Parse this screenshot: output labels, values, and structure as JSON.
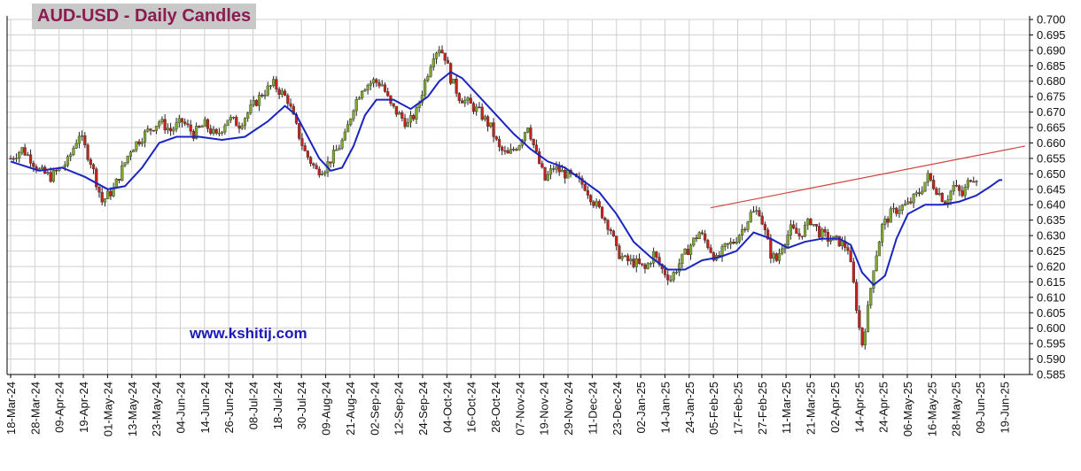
{
  "title": "AUD-USD - Daily Candles",
  "website": "www.kshitij.com",
  "colors": {
    "up": "#7ea82e",
    "down": "#c4221c",
    "wick": "#222222",
    "ma": "#1a24c0",
    "trendline": "#d0443c",
    "grid": "#cfcfcf",
    "title_bg": "#c8c8c8",
    "title_text": "#8b1c52",
    "website_text": "#1a1ab8"
  },
  "chart_data": {
    "type": "candlestick",
    "ylim": [
      0.585,
      0.7
    ],
    "y_ticks": [
      "0.585",
      "0.590",
      "0.595",
      "0.600",
      "0.605",
      "0.610",
      "0.615",
      "0.620",
      "0.625",
      "0.630",
      "0.635",
      "0.640",
      "0.645",
      "0.650",
      "0.655",
      "0.660",
      "0.665",
      "0.670",
      "0.675",
      "0.680",
      "0.685",
      "0.690",
      "0.695",
      "0.700"
    ],
    "x_ticks": [
      "18-Mar-24",
      "28-Mar-24",
      "09-Apr-24",
      "19-Apr-24",
      "01-May-24",
      "13-May-24",
      "23-May-24",
      "04-Jun-24",
      "14-Jun-24",
      "26-Jun-24",
      "08-Jul-24",
      "18-Jul-24",
      "30-Jul-24",
      "09-Aug-24",
      "21-Aug-24",
      "02-Sep-24",
      "12-Sep-24",
      "24-Sep-24",
      "04-Oct-24",
      "16-Oct-24",
      "28-Oct-24",
      "07-Nov-24",
      "19-Nov-24",
      "29-Nov-24",
      "11-Dec-24",
      "23-Dec-24",
      "02-Jan-25",
      "14-Jan-25",
      "24-Jan-25",
      "05-Feb-25",
      "17-Feb-25",
      "27-Feb-25",
      "11-Mar-25",
      "21-Mar-25",
      "02-Apr-25",
      "14-Apr-25",
      "24-Apr-25",
      "06-May-25",
      "16-May-25",
      "28-May-25",
      "09-Jun-25",
      "19-Jun-25"
    ],
    "anchors": [
      [
        0,
        0.655
      ],
      [
        4,
        0.658
      ],
      [
        7,
        0.655
      ],
      [
        10,
        0.651
      ],
      [
        14,
        0.649
      ],
      [
        20,
        0.654
      ],
      [
        24,
        0.663
      ],
      [
        28,
        0.654
      ],
      [
        32,
        0.641
      ],
      [
        36,
        0.645
      ],
      [
        42,
        0.658
      ],
      [
        47,
        0.663
      ],
      [
        52,
        0.667
      ],
      [
        56,
        0.664
      ],
      [
        60,
        0.667
      ],
      [
        64,
        0.663
      ],
      [
        68,
        0.666
      ],
      [
        72,
        0.662
      ],
      [
        76,
        0.668
      ],
      [
        80,
        0.666
      ],
      [
        84,
        0.671
      ],
      [
        88,
        0.676
      ],
      [
        92,
        0.679
      ],
      [
        97,
        0.674
      ],
      [
        100,
        0.665
      ],
      [
        103,
        0.657
      ],
      [
        107,
        0.651
      ],
      [
        110,
        0.652
      ],
      [
        113,
        0.656
      ],
      [
        117,
        0.662
      ],
      [
        120,
        0.672
      ],
      [
        123,
        0.678
      ],
      [
        127,
        0.68
      ],
      [
        130,
        0.679
      ],
      [
        133,
        0.672
      ],
      [
        136,
        0.669
      ],
      [
        139,
        0.666
      ],
      [
        142,
        0.67
      ],
      [
        145,
        0.68
      ],
      [
        148,
        0.689
      ],
      [
        150,
        0.691
      ],
      [
        152,
        0.688
      ],
      [
        154,
        0.681
      ],
      [
        157,
        0.675
      ],
      [
        160,
        0.673
      ],
      [
        164,
        0.67
      ],
      [
        168,
        0.665
      ],
      [
        171,
        0.658
      ],
      [
        174,
        0.656
      ],
      [
        178,
        0.66
      ],
      [
        181,
        0.666
      ],
      [
        184,
        0.656
      ],
      [
        187,
        0.648
      ],
      [
        190,
        0.652
      ],
      [
        194,
        0.65
      ],
      [
        198,
        0.648
      ],
      [
        201,
        0.646
      ],
      [
        204,
        0.641
      ],
      [
        207,
        0.637
      ],
      [
        210,
        0.632
      ],
      [
        212,
        0.625
      ],
      [
        215,
        0.622
      ],
      [
        219,
        0.621
      ],
      [
        222,
        0.619
      ],
      [
        225,
        0.624
      ],
      [
        228,
        0.619
      ],
      [
        231,
        0.616
      ],
      [
        234,
        0.621
      ],
      [
        238,
        0.627
      ],
      [
        241,
        0.631
      ],
      [
        244,
        0.627
      ],
      [
        247,
        0.622
      ],
      [
        250,
        0.626
      ],
      [
        253,
        0.628
      ],
      [
        256,
        0.632
      ],
      [
        259,
        0.637
      ],
      [
        262,
        0.638
      ],
      [
        264,
        0.631
      ],
      [
        266,
        0.624
      ],
      [
        268,
        0.622
      ],
      [
        270,
        0.627
      ],
      [
        273,
        0.632
      ],
      [
        276,
        0.63
      ],
      [
        280,
        0.635
      ],
      [
        283,
        0.631
      ],
      [
        286,
        0.629
      ],
      [
        290,
        0.628
      ],
      [
        293,
        0.626
      ],
      [
        295,
        0.614
      ],
      [
        297,
        0.6
      ],
      [
        298,
        0.595
      ],
      [
        300,
        0.606
      ],
      [
        302,
        0.62
      ],
      [
        305,
        0.633
      ],
      [
        308,
        0.637
      ],
      [
        311,
        0.639
      ],
      [
        314,
        0.64
      ],
      [
        318,
        0.644
      ],
      [
        321,
        0.649
      ],
      [
        324,
        0.645
      ],
      [
        327,
        0.641
      ],
      [
        330,
        0.646
      ],
      [
        333,
        0.643
      ],
      [
        336,
        0.649
      ],
      [
        338,
        0.649
      ]
    ],
    "moving_average": [
      [
        0,
        0.654
      ],
      [
        10,
        0.651
      ],
      [
        18,
        0.652
      ],
      [
        26,
        0.649
      ],
      [
        34,
        0.645
      ],
      [
        40,
        0.646
      ],
      [
        46,
        0.652
      ],
      [
        52,
        0.66
      ],
      [
        58,
        0.662
      ],
      [
        66,
        0.662
      ],
      [
        74,
        0.661
      ],
      [
        82,
        0.662
      ],
      [
        90,
        0.667
      ],
      [
        96,
        0.672
      ],
      [
        100,
        0.669
      ],
      [
        104,
        0.662
      ],
      [
        108,
        0.655
      ],
      [
        112,
        0.651
      ],
      [
        116,
        0.652
      ],
      [
        120,
        0.659
      ],
      [
        124,
        0.669
      ],
      [
        128,
        0.674
      ],
      [
        134,
        0.674
      ],
      [
        140,
        0.671
      ],
      [
        146,
        0.675
      ],
      [
        150,
        0.68
      ],
      [
        154,
        0.683
      ],
      [
        158,
        0.681
      ],
      [
        164,
        0.675
      ],
      [
        170,
        0.669
      ],
      [
        176,
        0.663
      ],
      [
        182,
        0.658
      ],
      [
        188,
        0.654
      ],
      [
        194,
        0.652
      ],
      [
        200,
        0.648
      ],
      [
        206,
        0.644
      ],
      [
        212,
        0.637
      ],
      [
        218,
        0.628
      ],
      [
        224,
        0.623
      ],
      [
        230,
        0.619
      ],
      [
        236,
        0.619
      ],
      [
        242,
        0.622
      ],
      [
        248,
        0.623
      ],
      [
        254,
        0.625
      ],
      [
        260,
        0.631
      ],
      [
        266,
        0.629
      ],
      [
        272,
        0.626
      ],
      [
        278,
        0.628
      ],
      [
        284,
        0.629
      ],
      [
        290,
        0.629
      ],
      [
        294,
        0.627
      ],
      [
        298,
        0.618
      ],
      [
        302,
        0.614
      ],
      [
        306,
        0.617
      ],
      [
        310,
        0.629
      ],
      [
        314,
        0.637
      ],
      [
        320,
        0.64
      ],
      [
        326,
        0.64
      ],
      [
        332,
        0.641
      ],
      [
        338,
        0.643
      ],
      [
        343,
        0.646
      ],
      [
        346,
        0.648
      ],
      [
        347,
        0.648
      ]
    ],
    "trendline": [
      [
        245,
        0.639
      ],
      [
        355,
        0.659
      ]
    ]
  }
}
